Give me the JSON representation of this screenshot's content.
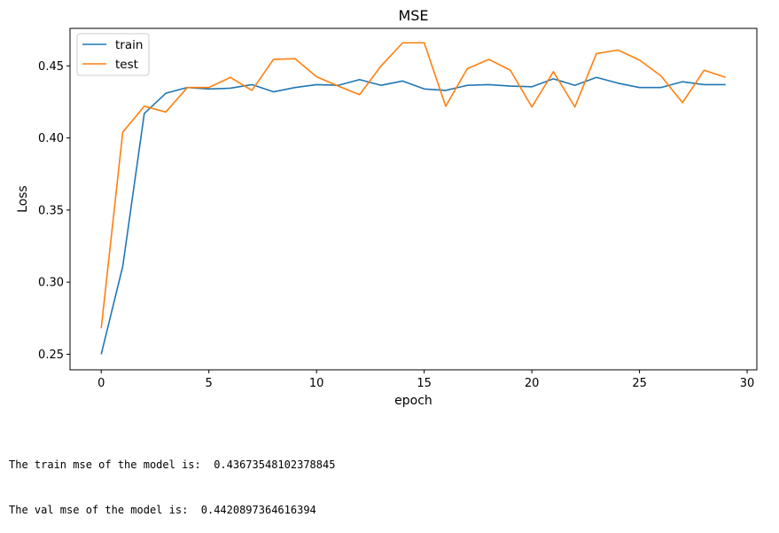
{
  "chart_data": {
    "type": "line",
    "title": "MSE",
    "xlabel": "epoch",
    "ylabel": "Loss",
    "xlim": [
      -1.45,
      30.45
    ],
    "ylim": [
      0.2392,
      0.476
    ],
    "xticks": [
      0,
      5,
      10,
      15,
      20,
      25,
      30
    ],
    "yticks": [
      0.25,
      0.3,
      0.35,
      0.4,
      0.45
    ],
    "ytick_labels": [
      "0.25",
      "0.30",
      "0.35",
      "0.40",
      "0.45"
    ],
    "grid": false,
    "legend_position": "upper-left",
    "x": [
      0,
      1,
      2,
      3,
      4,
      5,
      6,
      7,
      8,
      9,
      10,
      11,
      12,
      13,
      14,
      15,
      16,
      17,
      18,
      19,
      20,
      21,
      22,
      23,
      24,
      25,
      26,
      27,
      28,
      29
    ],
    "series": [
      {
        "name": "train",
        "color": "#1f77b4",
        "values": [
          0.25,
          0.311,
          0.417,
          0.431,
          0.435,
          0.434,
          0.4345,
          0.437,
          0.432,
          0.435,
          0.437,
          0.4365,
          0.4405,
          0.4365,
          0.4395,
          0.434,
          0.433,
          0.4365,
          0.437,
          0.436,
          0.4355,
          0.441,
          0.4365,
          0.442,
          0.438,
          0.435,
          0.435,
          0.439,
          0.437,
          0.437
        ]
      },
      {
        "name": "test",
        "color": "#ff7f0e",
        "values": [
          0.268,
          0.404,
          0.422,
          0.418,
          0.435,
          0.435,
          0.442,
          0.433,
          0.4545,
          0.455,
          0.4425,
          0.436,
          0.43,
          0.45,
          0.466,
          0.466,
          0.422,
          0.448,
          0.4545,
          0.447,
          0.4215,
          0.446,
          0.4215,
          0.4585,
          0.461,
          0.454,
          0.443,
          0.4245,
          0.447,
          0.442
        ]
      }
    ]
  },
  "output": {
    "line1": "The train mse of the model is:  0.43673548102378845",
    "line2": "The val mse of the model is:  0.4420897364616394"
  }
}
